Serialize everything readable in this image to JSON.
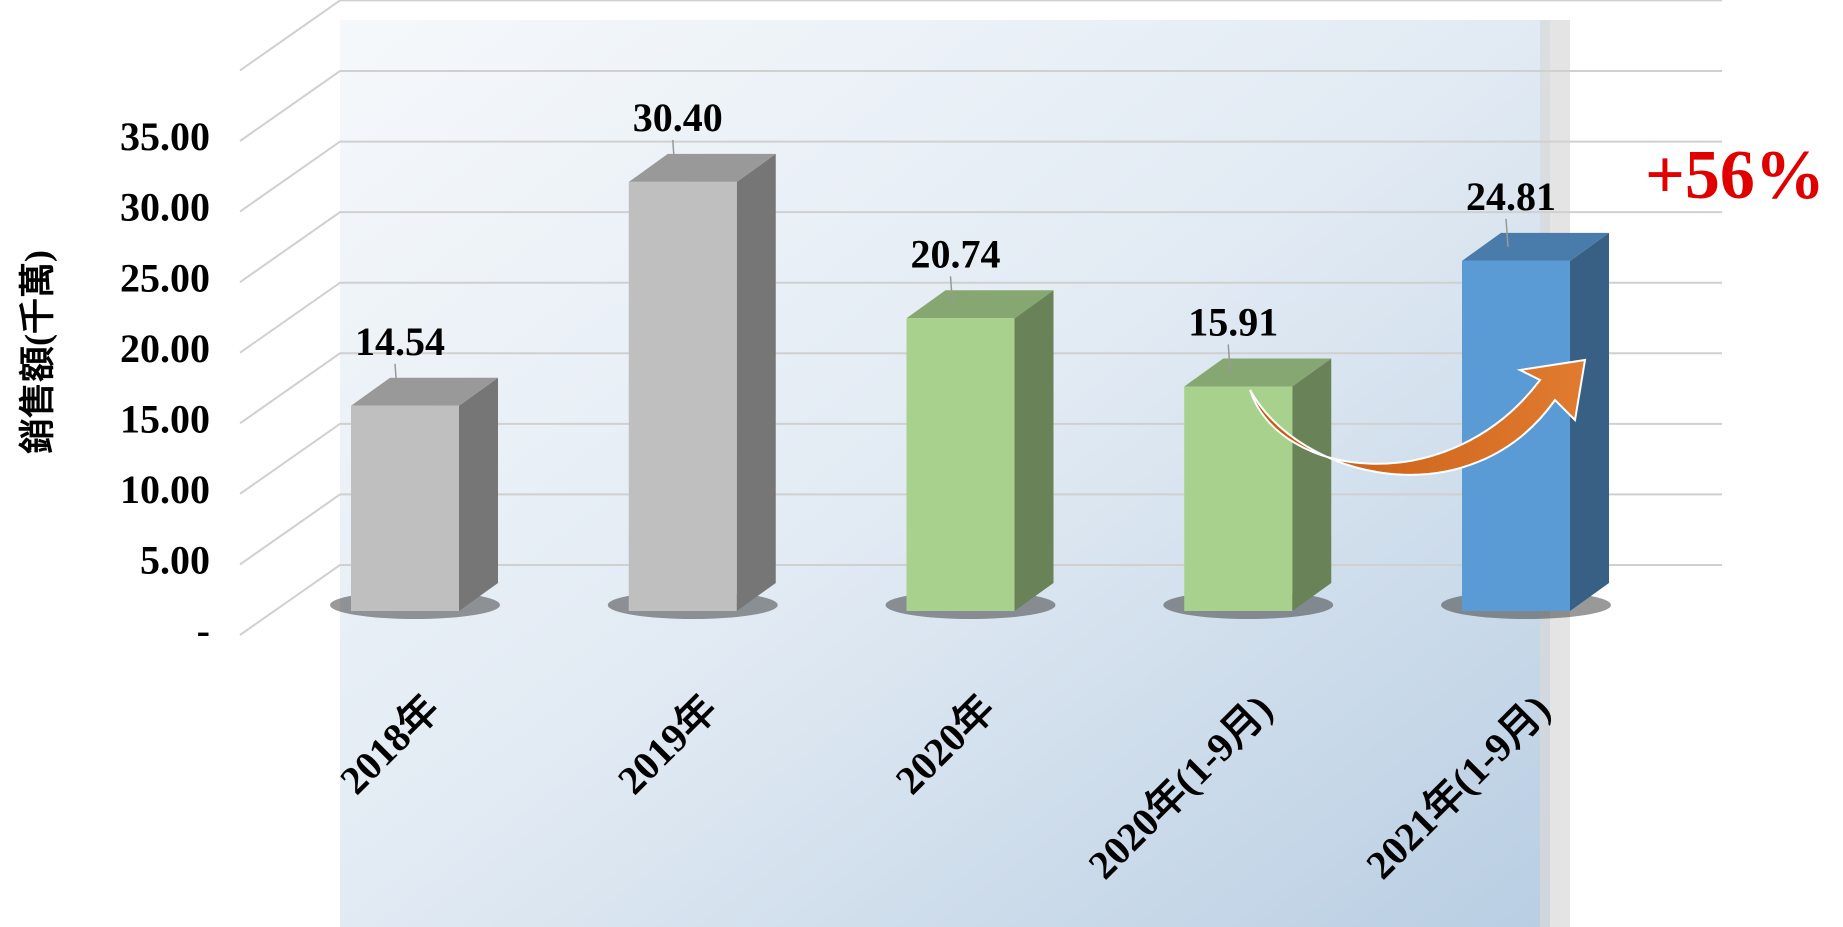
{
  "chart_data": {
    "type": "bar3d",
    "y_label": "銷售額(千萬)",
    "categories": [
      "2018年",
      "2019年",
      "2020年",
      "2020年(1-9月)",
      "2021年(1-9月)"
    ],
    "values": [
      14.54,
      30.4,
      20.74,
      15.91,
      24.81
    ],
    "value_labels": [
      "14.54",
      "30.40",
      "20.74",
      "15.91",
      "24.81"
    ],
    "colors": [
      "#bfbfbf",
      "#bfbfbf",
      "#a9d18e",
      "#a9d18e",
      "#5b9bd5"
    ],
    "ylim": [
      0,
      40
    ],
    "yticks": [
      {
        "value": 0,
        "label": "-"
      },
      {
        "value": 5,
        "label": "5.00"
      },
      {
        "value": 10,
        "label": "10.00"
      },
      {
        "value": 15,
        "label": "15.00"
      },
      {
        "value": 20,
        "label": "20.00"
      },
      {
        "value": 25,
        "label": "25.00"
      },
      {
        "value": 30,
        "label": "30.00"
      },
      {
        "value": 35,
        "label": "35.00"
      }
    ],
    "grid": true,
    "annotation": "+56%"
  }
}
